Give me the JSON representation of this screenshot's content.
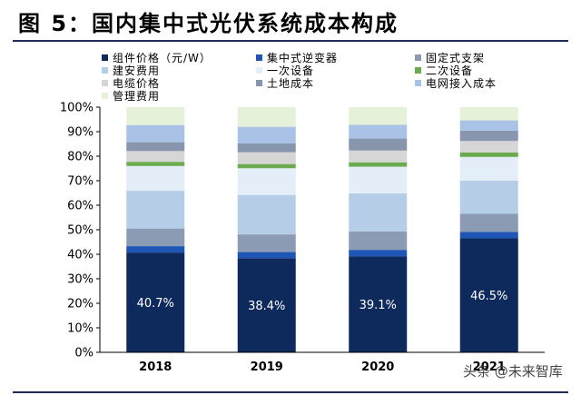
{
  "title": "图 5：国内集中式光伏系统成本构成",
  "watermark": "头条 @未来智库",
  "chart_data": {
    "type": "bar",
    "stacked": true,
    "categories": [
      "2018",
      "2019",
      "2020",
      "2021"
    ],
    "ylim": [
      0,
      100
    ],
    "yticks": [
      "0%",
      "10%",
      "20%",
      "30%",
      "40%",
      "50%",
      "60%",
      "70%",
      "80%",
      "90%",
      "100%"
    ],
    "grid": false,
    "legend_position": "top",
    "series": [
      {
        "name": "组件价格（元/W）",
        "color": "#0e2a5c",
        "values": [
          40.7,
          38.4,
          39.1,
          46.5
        ],
        "labels": [
          "40.7%",
          "38.4%",
          "39.1%",
          "46.5%"
        ]
      },
      {
        "name": "集中式逆变器",
        "color": "#1f56b5",
        "values": [
          2.6,
          2.5,
          2.7,
          2.6
        ]
      },
      {
        "name": "固定式支架",
        "color": "#8b9bb3",
        "values": [
          7.2,
          7.2,
          7.5,
          7.4
        ]
      },
      {
        "name": "建安费用",
        "color": "#b5cde6",
        "values": [
          15.4,
          16.1,
          15.5,
          13.5
        ]
      },
      {
        "name": "一次设备",
        "color": "#e3eef9",
        "values": [
          10.1,
          10.9,
          10.9,
          9.7
        ]
      },
      {
        "name": "二次设备",
        "color": "#6aab4f",
        "values": [
          1.7,
          1.7,
          1.8,
          1.8
        ]
      },
      {
        "name": "电缆价格",
        "color": "#d6d6d6",
        "values": [
          4.4,
          4.8,
          4.8,
          4.7
        ]
      },
      {
        "name": "土地成本",
        "color": "#8896ad",
        "values": [
          3.6,
          3.6,
          4.9,
          4.2
        ]
      },
      {
        "name": "电网接入成本",
        "color": "#a9c2e6",
        "values": [
          7.0,
          6.8,
          5.6,
          4.2
        ]
      },
      {
        "name": "管理费用",
        "color": "#e6f1d9",
        "values": [
          7.3,
          8.0,
          7.2,
          5.4
        ]
      }
    ]
  }
}
